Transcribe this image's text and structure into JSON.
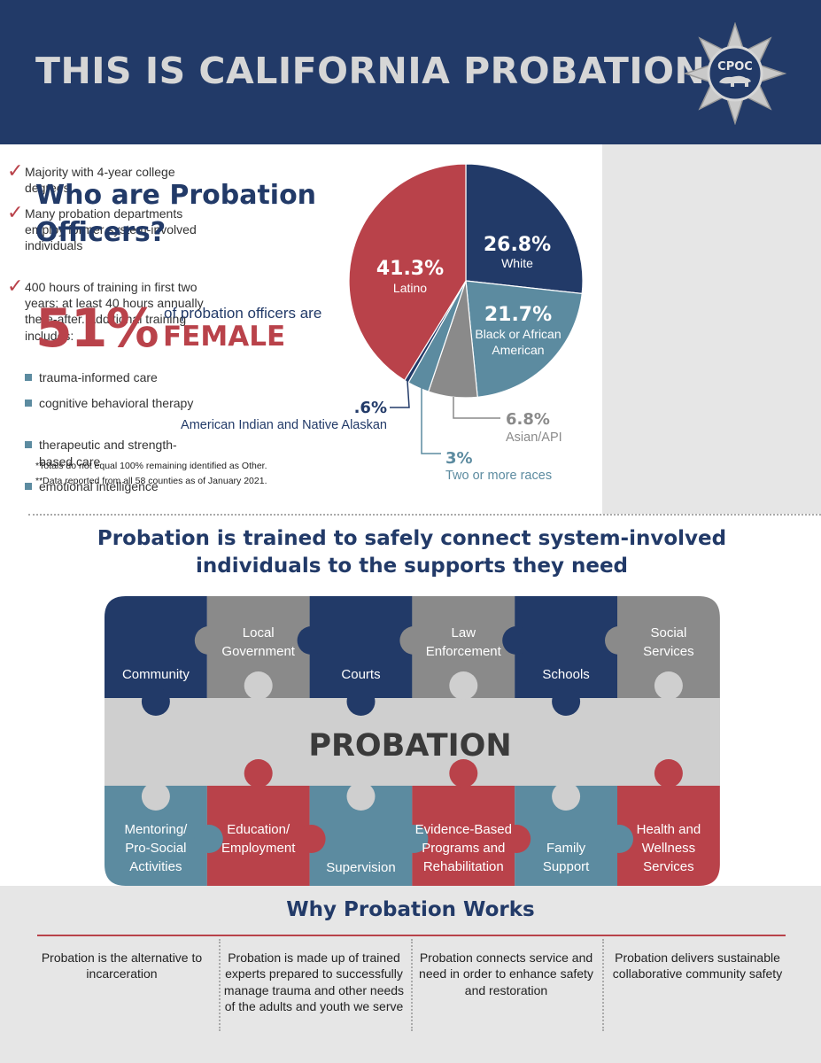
{
  "header": {
    "title": "THIS IS CALIFORNIA PROBATION",
    "logo_text": "CPOC"
  },
  "demographics": {
    "title_line1": "Who are Probation",
    "title_line2": "Officers?",
    "female_pct": "51%",
    "female_caption": "of probation officers are",
    "female_word": "FEMALE",
    "footnote1": "*Totals do not equal 100% remaining identified as Other.",
    "footnote2": "**Data reported from all 58 counties as of January 2021."
  },
  "chart_data": {
    "type": "pie",
    "slices": [
      {
        "label": "White",
        "value_label": "26.8%",
        "value": 26.8,
        "color": "#223a68"
      },
      {
        "label": "Black or African American",
        "value_label": "21.7%",
        "value": 21.7,
        "color": "#5c8ba0"
      },
      {
        "label": "Asian/API",
        "value_label": "6.8%",
        "value": 6.8,
        "color": "#8a8a8a"
      },
      {
        "label": "Two or more races",
        "value_label": "3%",
        "value": 3.0,
        "color": "#5c8ba0"
      },
      {
        "label": "American Indian and Native Alaskan",
        "value_label": ".6%",
        "value": 0.6,
        "color": "#223a68"
      },
      {
        "label": "Latino",
        "value_label": "41.3%",
        "value": 41.3,
        "color": "#b9424a"
      }
    ]
  },
  "sidebar": {
    "checks": [
      "Majority with 4-year college degrees",
      "Many probation departments employ former system-involved individuals",
      "400 hours of training in first two years; at least 40 hours annually there-after. Additional training includes:"
    ],
    "trainings": [
      "trauma-informed care",
      "cognitive behavioral therapy",
      "therapeutic and strength-based care",
      "emotional intelligence"
    ]
  },
  "supports": {
    "title": "Probation is trained to safely connect system-involved individuals to the supports they need",
    "center_label": "PROBATION",
    "top_pieces": [
      {
        "label": "Community",
        "color": "#223a68"
      },
      {
        "label": "Local Government",
        "color": "#8a8a8a"
      },
      {
        "label": "Courts",
        "color": "#223a68"
      },
      {
        "label": "Law Enforcement",
        "color": "#8a8a8a"
      },
      {
        "label": "Schools",
        "color": "#223a68"
      },
      {
        "label": "Social Services",
        "color": "#8a8a8a"
      }
    ],
    "bottom_pieces": [
      {
        "label": "Mentoring/ Pro-Social Activities",
        "color": "#5c8ba0"
      },
      {
        "label": "Education/ Employment",
        "color": "#b9424a"
      },
      {
        "label": "Supervision",
        "color": "#5c8ba0"
      },
      {
        "label": "Evidence-Based Programs and Rehabilitation",
        "color": "#b9424a"
      },
      {
        "label": "Family Support",
        "color": "#5c8ba0"
      },
      {
        "label": "Health and Wellness Services",
        "color": "#b9424a"
      }
    ]
  },
  "why": {
    "title": "Why Probation Works",
    "columns": [
      "Probation is the alternative to incarceration",
      "Probation is made up of trained experts prepared to successfully manage trauma and other needs of the adults and youth we serve",
      "Probation connects service and need in order to enhance safety and restoration",
      "Probation delivers sustainable collaborative community safety"
    ]
  }
}
